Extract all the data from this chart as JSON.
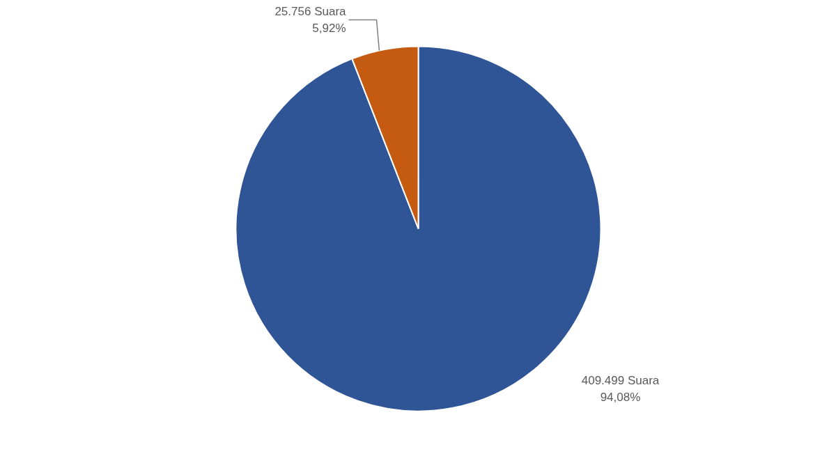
{
  "chart_data": {
    "type": "pie",
    "categories": [
      null,
      null
    ],
    "values": [
      409499,
      25756
    ],
    "colors": [
      "#2f5597",
      "#c55a11"
    ],
    "value_labels": [
      "409.499 Suara\n94,08%",
      "25.756 Suara\n5,92%"
    ]
  }
}
